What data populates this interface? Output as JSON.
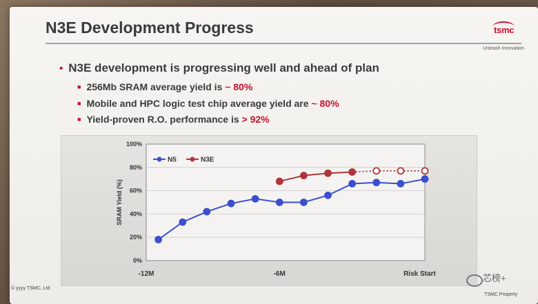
{
  "slide": {
    "title": "N3E Development Progress",
    "logo": "tsmc",
    "tagline": "Unleash Innovation",
    "bullet_main": "N3E development is progressing well and ahead of plan",
    "subs": [
      {
        "pre": "256Mb SRAM average yield is ",
        "hl": "~ 80%"
      },
      {
        "pre": "Mobile and HPC logic test chip average yield are ",
        "hl": "~ 80%"
      },
      {
        "pre": "Yield-proven R.O. performance is ",
        "hl": "> 92%"
      }
    ],
    "footer_left": "© yyyy TSMC, Ltd",
    "footer_right": "TSMC Property",
    "watermark": "芯榜+",
    "colors": {
      "accent": "#c8102e",
      "n5": "#3b4fcf",
      "n3e": "#b0353a"
    }
  },
  "chart_data": {
    "type": "line",
    "ylabel": "SRAM Yield (%)",
    "xlabel": "",
    "ylim": [
      0,
      100
    ],
    "yticks": [
      "0%",
      "20%",
      "40%",
      "60%",
      "80%",
      "100%"
    ],
    "x_tick_labels": [
      {
        "x": 0,
        "label": "-12M"
      },
      {
        "x": 11,
        "label": "-6M"
      },
      {
        "x": 22,
        "label": "Risk Start"
      }
    ],
    "grid": true,
    "legend": "top-left",
    "series": [
      {
        "name": "N5",
        "x": [
          1,
          3,
          5,
          7,
          9,
          11,
          13,
          15,
          17,
          19,
          21,
          23
        ],
        "values": [
          18,
          33,
          42,
          49,
          53,
          50,
          50,
          56,
          66,
          67,
          66,
          70
        ]
      },
      {
        "name": "N3E",
        "x": [
          11,
          13,
          15,
          17
        ],
        "values": [
          68,
          73,
          75,
          76
        ]
      },
      {
        "name": "",
        "projected": true,
        "x": [
          17,
          19,
          21,
          23
        ],
        "values": [
          76,
          77,
          77,
          77
        ]
      }
    ]
  }
}
